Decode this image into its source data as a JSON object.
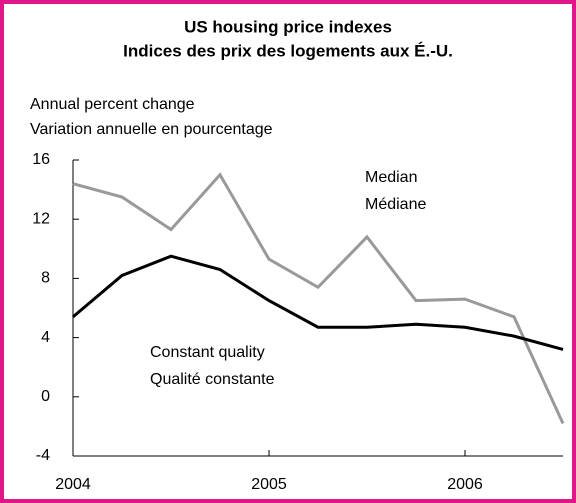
{
  "chart_data": {
    "type": "line",
    "title": "US housing price indexes",
    "subtitle": "Indices des prix des logements aux É.-U.",
    "y_label": "Annual percent change",
    "y_label_fr": "Variation annuelle en pourcentage",
    "x": [
      2004,
      2004.25,
      2004.5,
      2004.75,
      2005,
      2005.25,
      2005.5,
      2005.75,
      2006,
      2006.25,
      2006.5
    ],
    "series": [
      {
        "name": "Median",
        "name_fr": "Médiane",
        "color": "#999999",
        "values": [
          14.4,
          13.5,
          11.3,
          15.0,
          9.3,
          7.4,
          10.8,
          6.5,
          6.6,
          5.4,
          -1.8
        ]
      },
      {
        "name": "Constant quality",
        "name_fr": "Qualité constante",
        "color": "#000000",
        "values": [
          5.4,
          8.2,
          9.5,
          8.6,
          6.5,
          4.7,
          4.7,
          4.9,
          4.7,
          4.1,
          3.2
        ]
      }
    ],
    "xlim": [
      2004,
      2006.5
    ],
    "xticks": [
      2004,
      2005,
      2006
    ],
    "ylim": [
      -4,
      16
    ],
    "yticks": [
      -4,
      0,
      4,
      8,
      12,
      16
    ]
  }
}
